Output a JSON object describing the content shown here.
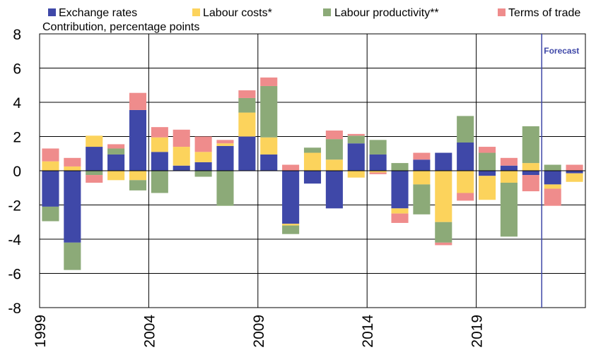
{
  "chart_data": {
    "type": "bar",
    "stacked": true,
    "subtitle": "Contribution, percentage points",
    "ylim": [
      -8,
      8
    ],
    "yticks": [
      "8",
      "6",
      "4",
      "2",
      "0",
      "-2",
      "-4",
      "-6",
      "-8"
    ],
    "xticks": [
      "1999",
      "2004",
      "2009",
      "2014",
      "2019"
    ],
    "grid": true,
    "legend_position": "top",
    "years": [
      1999,
      2000,
      2001,
      2002,
      2003,
      2004,
      2005,
      2006,
      2007,
      2008,
      2009,
      2010,
      2011,
      2012,
      2013,
      2014,
      2015,
      2016,
      2017,
      2018,
      2019,
      2020,
      2021,
      2022,
      2023
    ],
    "series": [
      {
        "name": "Exchange rates",
        "color": "#3f48a8",
        "values": [
          -2.1,
          -4.2,
          1.4,
          0.95,
          3.55,
          1.1,
          0.3,
          0.5,
          1.45,
          2.0,
          0.95,
          -3.1,
          -0.75,
          -2.2,
          1.6,
          0.95,
          -2.2,
          0.65,
          1.05,
          1.65,
          -0.3,
          0.3,
          -0.25,
          -0.8,
          -0.15
        ]
      },
      {
        "name": "Labour costs*",
        "color": "#fcd35c",
        "values": [
          0.55,
          0.25,
          0.65,
          -0.55,
          -0.55,
          0.85,
          1.1,
          0.6,
          0.15,
          1.4,
          1.0,
          -0.1,
          1.05,
          0.65,
          -0.4,
          -0.1,
          -0.3,
          -0.8,
          -3.0,
          -1.3,
          -1.4,
          -0.7,
          0.45,
          -0.25,
          -0.5
        ]
      },
      {
        "name": "Labour productivity**",
        "color": "#8caa78",
        "values": [
          -0.85,
          -1.6,
          -0.25,
          0.35,
          -0.6,
          -1.3,
          0.0,
          -0.35,
          -2.05,
          0.85,
          3.0,
          -0.5,
          0.3,
          1.2,
          0.45,
          0.85,
          0.45,
          -1.75,
          -1.2,
          1.55,
          1.05,
          -3.15,
          2.15,
          0.35,
          0.0
        ]
      },
      {
        "name": "Terms of trade",
        "color": "#ef8c8c",
        "values": [
          0.75,
          0.5,
          -0.45,
          0.25,
          1.0,
          0.6,
          1.0,
          0.9,
          0.2,
          0.45,
          0.5,
          0.35,
          0.0,
          0.5,
          0.1,
          -0.1,
          -0.55,
          0.4,
          -0.15,
          -0.45,
          0.35,
          0.45,
          -0.95,
          -1.0,
          0.35
        ]
      }
    ],
    "forecast": {
      "label": "Forecast",
      "x_after_year": 2022,
      "color": "#3f48a8"
    }
  }
}
